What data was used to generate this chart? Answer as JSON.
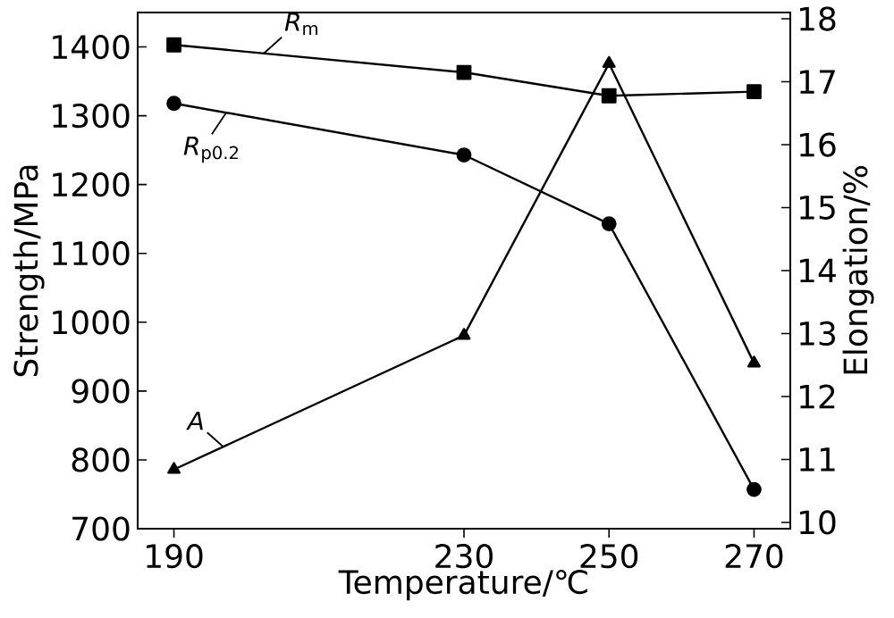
{
  "chart_data": {
    "type": "line",
    "xlabel": "Temperature/℃",
    "ylabel": "Strength/MPa",
    "y2label": "Elongation/%",
    "x": [
      190,
      230,
      250,
      270
    ],
    "xlim": [
      185,
      275
    ],
    "xticks": [
      190,
      230,
      250,
      270
    ],
    "ylim": [
      700,
      1450
    ],
    "yticks": [
      700,
      800,
      900,
      1000,
      1100,
      1200,
      1300,
      1400
    ],
    "y2lim": [
      9.9,
      18.1
    ],
    "y2ticks": [
      10,
      11,
      12,
      13,
      14,
      15,
      16,
      17,
      18
    ],
    "grid": false,
    "line_style": "solid",
    "series": [
      {
        "name": "*R*$_{m}$",
        "color": "#000000",
        "marker": "square",
        "values": [
          1403,
          1363,
          1329,
          1335
        ]
      },
      {
        "name": "*R*$_{p0.2}$",
        "color": "#000000",
        "marker": "circle",
        "values": [
          1318,
          1243,
          1143,
          757
        ]
      },
      {
        "name": "*A*",
        "color": "#000000",
        "marker": "triangle",
        "axis": "y2",
        "values": [
          10.84,
          12.97,
          17.29,
          12.53
        ]
      }
    ]
  }
}
